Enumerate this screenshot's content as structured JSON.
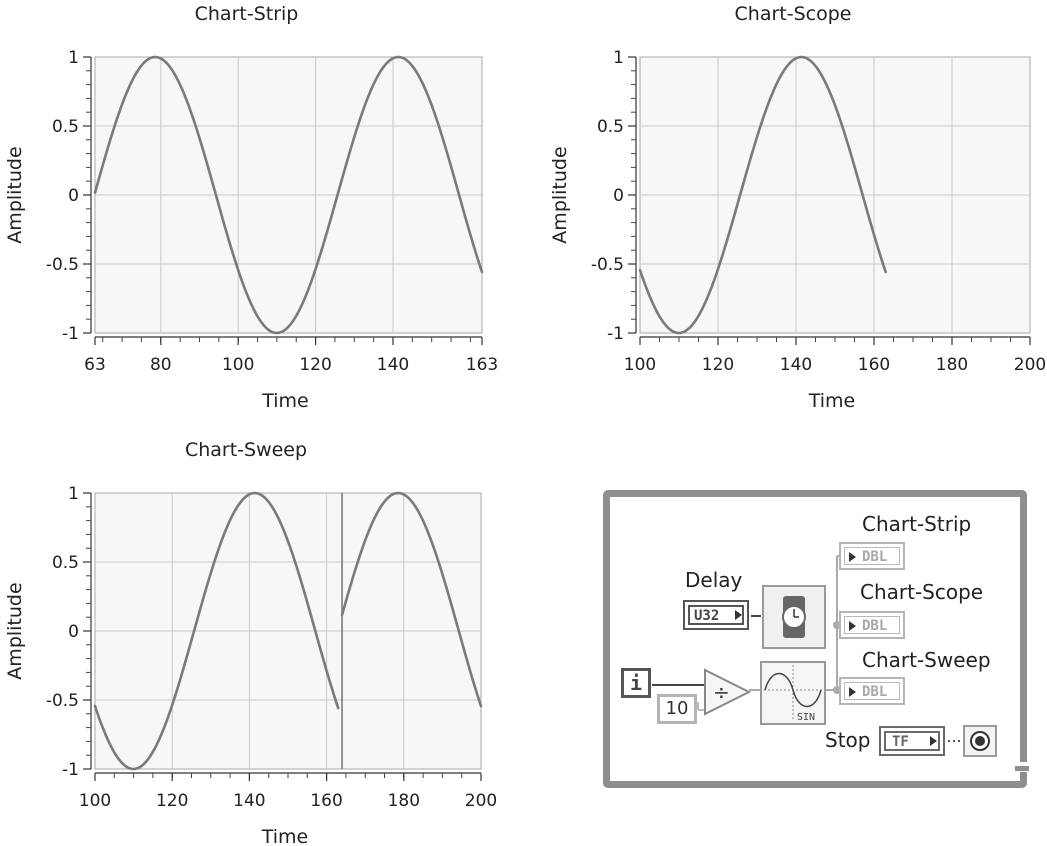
{
  "charts": [
    {
      "id": "strip",
      "title": "Chart-Strip",
      "xlabel": "Time",
      "ylabel": "Amplitude",
      "xlim": [
        63,
        163
      ],
      "ylim": [
        -1,
        1
      ],
      "xticks": [
        "63",
        "80",
        "100",
        "120",
        "140",
        "163"
      ],
      "yticks": [
        "1",
        "0.5",
        "0",
        "-0.5",
        "-1"
      ]
    },
    {
      "id": "scope",
      "title": "Chart-Scope",
      "xlabel": "Time",
      "ylabel": "Amplitude",
      "xlim": [
        100,
        200
      ],
      "ylim": [
        -1,
        1
      ],
      "xticks": [
        "100",
        "120",
        "140",
        "160",
        "180",
        "200"
      ],
      "yticks": [
        "1",
        "0.5",
        "0",
        "-0.5",
        "-1"
      ]
    },
    {
      "id": "sweep",
      "title": "Chart-Sweep",
      "xlabel": "Time",
      "ylabel": "Amplitude",
      "xlim": [
        100,
        200
      ],
      "ylim": [
        -1,
        1
      ],
      "xticks": [
        "100",
        "120",
        "140",
        "160",
        "180",
        "200"
      ],
      "yticks": [
        "1",
        "0.5",
        "0",
        "-0.5",
        "-1"
      ]
    }
  ],
  "chart_data": [
    {
      "type": "line",
      "title": "Chart-Strip",
      "xlabel": "Time",
      "ylabel": "Amplitude",
      "xlim": [
        63,
        163
      ],
      "ylim": [
        -1,
        1
      ],
      "grid": true,
      "series": [
        {
          "x_start": 63,
          "x_end": 163,
          "function": "sin(x/10)"
        }
      ]
    },
    {
      "type": "line",
      "title": "Chart-Scope",
      "xlabel": "Time",
      "ylabel": "Amplitude",
      "xlim": [
        100,
        200
      ],
      "ylim": [
        -1,
        1
      ],
      "grid": true,
      "series": [
        {
          "x_start": 100,
          "x_end": 163,
          "function": "sin(x/10)"
        }
      ]
    },
    {
      "type": "line",
      "title": "Chart-Sweep",
      "xlabel": "Time",
      "ylabel": "Amplitude",
      "xlim": [
        100,
        200
      ],
      "ylim": [
        -1,
        1
      ],
      "grid": true,
      "sweep_cursor": 164,
      "series": [
        {
          "x_start": 100,
          "x_end": 163,
          "function": "sin(x/10)"
        },
        {
          "x_start": 164,
          "x_end": 200,
          "function": "sin((x-100)/10)"
        }
      ]
    }
  ],
  "diagram": {
    "delay_label": "Delay",
    "delay_type": "U32",
    "strip_label": "Chart-Strip",
    "scope_label": "Chart-Scope",
    "sweep_label": "Chart-Sweep",
    "indicator_type": "DBL",
    "iteration": "i",
    "divisor": "10",
    "divide_symbol": "÷",
    "sine_label": "SIN",
    "stop_label": "Stop",
    "stop_type": "TF"
  }
}
